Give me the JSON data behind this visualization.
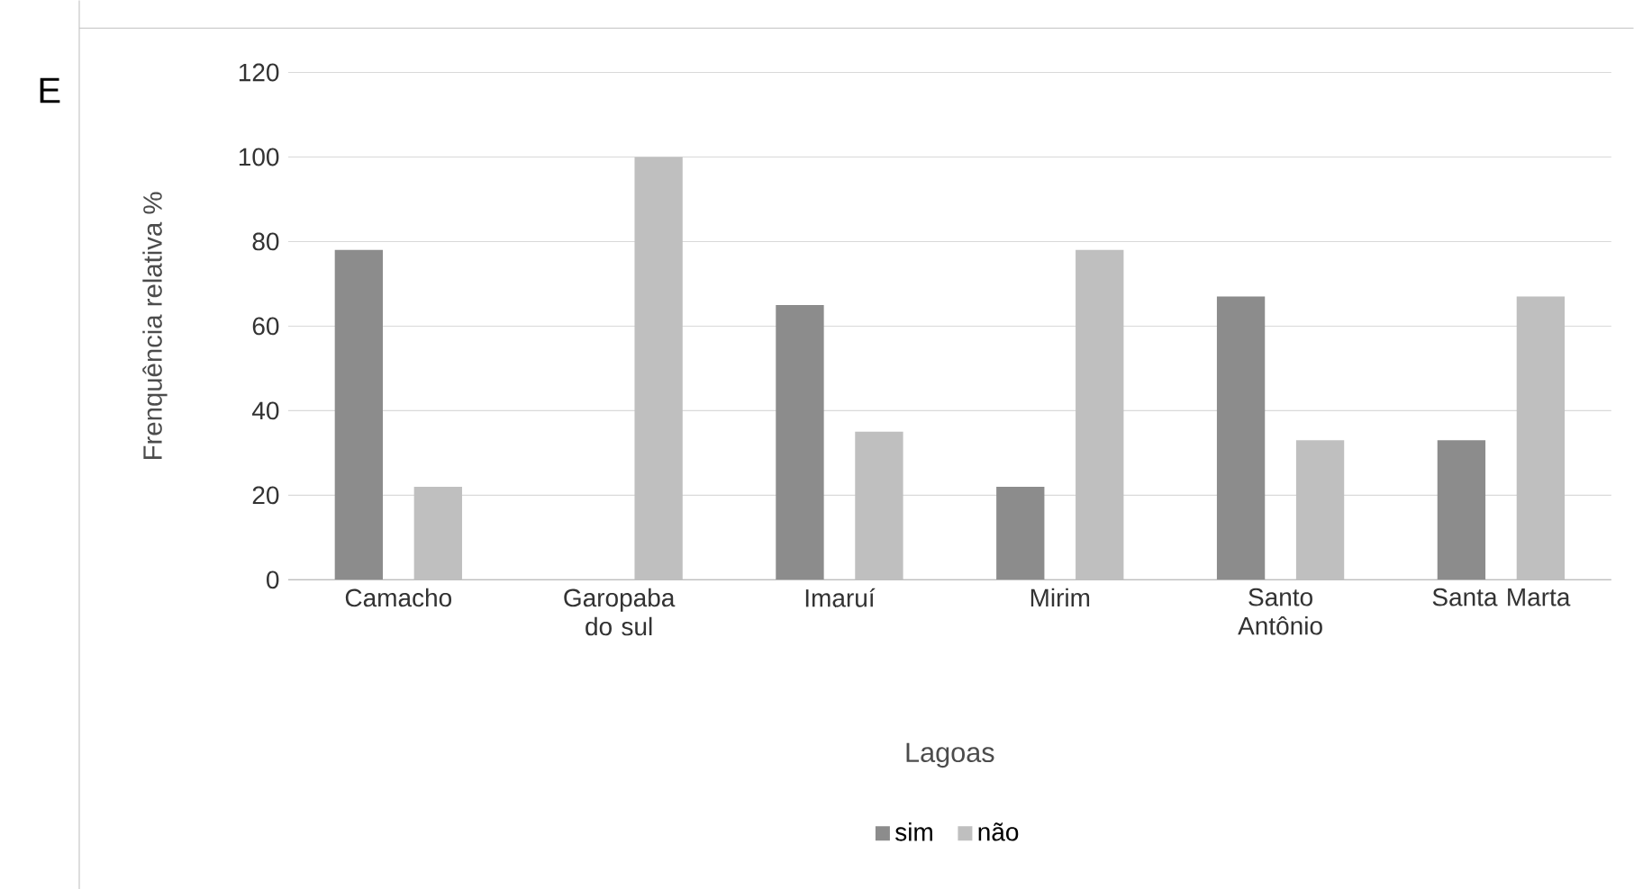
{
  "chart_data": {
    "type": "bar",
    "xlabel": "Lagoas",
    "ylabel": "Frenquência relativa %",
    "categories": [
      "Camacho",
      "Garopaba do sul",
      "Imaruí",
      "Mirim",
      "Santo Antônio",
      "Santa Marta"
    ],
    "series": [
      {
        "name": "sim",
        "color": "#8c8c8c",
        "values": [
          78,
          0,
          65,
          22,
          67,
          33
        ]
      },
      {
        "name": "não",
        "color": "#bfbfbf",
        "values": [
          22,
          100,
          35,
          78,
          33,
          67
        ]
      }
    ],
    "ylim": [
      0,
      120
    ],
    "yticks": [
      0,
      20,
      40,
      60,
      80,
      100,
      120
    ],
    "grid": "y",
    "legend": "bottom",
    "annotations": [
      "E"
    ]
  }
}
